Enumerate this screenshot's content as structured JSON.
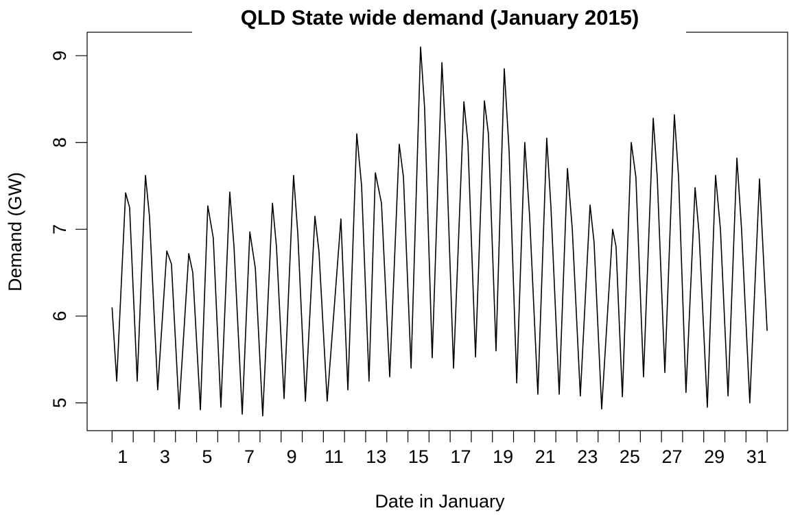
{
  "chart_data": {
    "type": "line",
    "title": "QLD State wide demand (January 2015)",
    "xlabel": "Date in January",
    "ylabel": "Demand (GW)",
    "x": [
      0.5,
      0.72,
      1.14,
      1.33,
      1.69,
      2.08,
      2.27,
      2.66,
      3.09,
      3.31,
      3.67,
      4.13,
      4.32,
      4.68,
      5.03,
      5.29,
      5.65,
      6.07,
      6.27,
      6.66,
      7.02,
      7.28,
      7.63,
      8.09,
      8.28,
      8.64,
      9.09,
      9.29,
      9.65,
      10.1,
      10.29,
      10.68,
      11.33,
      11.66,
      12.08,
      12.31,
      12.66,
      12.96,
      13.25,
      13.64,
      14.09,
      14.29,
      14.65,
      15.1,
      15.29,
      15.65,
      16.11,
      16.3,
      16.66,
      17.15,
      17.34,
      17.7,
      18.12,
      18.31,
      18.67,
      19.06,
      19.29,
      19.65,
      20.03,
      20.26,
      20.65,
      21.07,
      21.27,
      21.66,
      22.05,
      22.28,
      22.66,
      23.12,
      23.31,
      23.67,
      24.19,
      24.35,
      24.65,
      25.07,
      25.29,
      25.65,
      26.11,
      26.3,
      26.66,
      27.11,
      27.31,
      27.66,
      28.09,
      28.28,
      28.67,
      29.06,
      29.29,
      29.65,
      30.07,
      30.29,
      30.68,
      31.14,
      31.3,
      31.5
    ],
    "series": [
      {
        "name": "Demand",
        "color": "#000000",
        "values": [
          6.1,
          5.25,
          7.42,
          7.25,
          5.25,
          7.62,
          7.15,
          5.15,
          6.75,
          6.6,
          4.93,
          6.72,
          6.5,
          4.92,
          7.27,
          6.9,
          4.95,
          7.43,
          6.8,
          4.87,
          6.97,
          6.55,
          4.85,
          7.3,
          6.8,
          5.05,
          7.62,
          6.95,
          5.02,
          7.15,
          6.75,
          5.02,
          7.12,
          5.15,
          8.1,
          7.5,
          5.25,
          7.65,
          7.3,
          5.3,
          7.98,
          7.6,
          5.4,
          9.1,
          8.4,
          5.52,
          8.92,
          8.0,
          5.4,
          8.47,
          8.0,
          5.53,
          8.48,
          8.1,
          5.6,
          8.85,
          7.9,
          5.23,
          8.0,
          7.15,
          5.1,
          8.05,
          7.25,
          5.1,
          7.7,
          7.0,
          5.08,
          7.28,
          6.85,
          4.93,
          7.0,
          6.8,
          5.07,
          8.0,
          7.6,
          5.3,
          8.28,
          7.6,
          5.35,
          8.32,
          7.6,
          5.12,
          7.48,
          6.95,
          4.95,
          7.62,
          7.0,
          5.08,
          7.82,
          7.0,
          5.0,
          7.58,
          6.8,
          5.83
        ]
      }
    ],
    "xlim": [
      -0.68,
      32.47
    ],
    "xticks": [
      1,
      3,
      5,
      7,
      9,
      11,
      13,
      15,
      17,
      19,
      21,
      23,
      25,
      27,
      29,
      31
    ],
    "xtick_marks": [
      0.5,
      1.5,
      2.5,
      3.5,
      4.5,
      5.5,
      6.5,
      7.5,
      8.5,
      9.5,
      10.5,
      11.5,
      12.5,
      13.5,
      14.5,
      15.5,
      16.5,
      17.5,
      18.5,
      19.5,
      20.5,
      21.5,
      22.5,
      23.5,
      24.5,
      25.5,
      26.5,
      27.5,
      28.5,
      29.5,
      30.5,
      31.5
    ],
    "ylim": [
      4.68,
      9.27
    ],
    "yticks": [
      5,
      6,
      7,
      8,
      9
    ]
  }
}
